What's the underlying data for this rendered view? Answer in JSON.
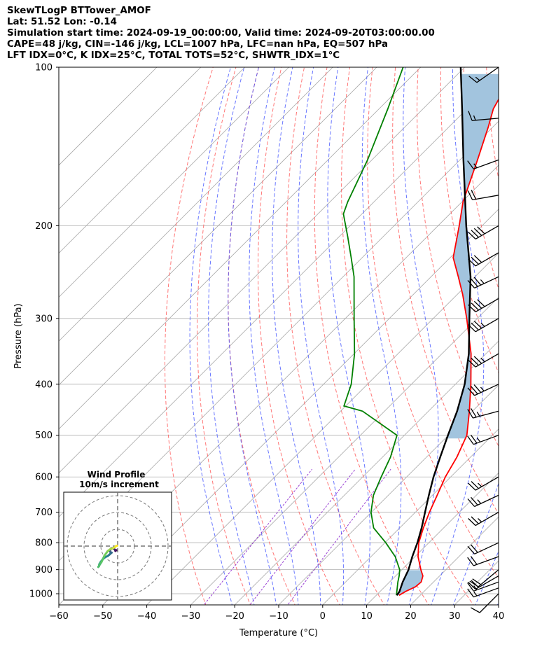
{
  "header": {
    "line1": "SkewTLogP BTTower_AMOF",
    "line2": "Lat: 51.52   Lon: -0.14",
    "line3": "Simulation start time: 2024-09-19_00:00:00, Valid time: 2024-09-20T03:00:00.00",
    "line4": "CAPE=48 j/kg, CIN=-146 j/kg, LCL=1007 hPa, LFC=nan hPa, EQ=507 hPa",
    "line5": "LFT IDX=0°C, K IDX=25°C, TOTAL TOTS=52°C, SHWTR_IDX=1°C"
  },
  "colors": {
    "temperature": "#ff0000",
    "dewpoint": "#008000",
    "parcel": "#000000",
    "cape_fill": "#a2c4de",
    "dry_adiabat": "#ff5555",
    "moist_adiabat": "#4455ff",
    "mixing_ratio": "#8822cc",
    "isotherm": "#a8a8a8"
  },
  "chart_data": {
    "type": "line",
    "xlabel": "Temperature (°C)",
    "ylabel": "Pressure (hPa)",
    "xlim": [
      -60,
      40
    ],
    "ylim": [
      1050,
      100
    ],
    "y_scale": "log",
    "grid": true,
    "x_ticks": [
      -60,
      -50,
      -40,
      -30,
      -20,
      -10,
      0,
      10,
      20,
      30,
      40
    ],
    "x_tick_labels": [
      "−60",
      "−50",
      "−40",
      "−30",
      "−20",
      "−10",
      "0",
      "10",
      "20",
      "30",
      "40"
    ],
    "y_ticks": [
      1000,
      900,
      800,
      700,
      600,
      500,
      400,
      300,
      200,
      100
    ],
    "y_tick_labels": [
      "1000",
      "900",
      "800",
      "700",
      "600",
      "500",
      "400",
      "300",
      "200",
      "100"
    ],
    "series": [
      {
        "id": "temperature",
        "pressure": [
          1007,
          990,
          970,
          950,
          925,
          900,
          850,
          800,
          750,
          700,
          650,
          600,
          550,
          500,
          450,
          400,
          350,
          300,
          270,
          250,
          230,
          200,
          180,
          150,
          130,
          120,
          110,
          100
        ],
        "values": [
          15.2,
          15.8,
          17.0,
          17.2,
          16.2,
          14.3,
          10.7,
          7.7,
          5.4,
          3.2,
          1.1,
          -1.2,
          -3.1,
          -5.8,
          -10.7,
          -16.5,
          -23.4,
          -32.4,
          -38.8,
          -43.8,
          -49.3,
          -55.2,
          -59.8,
          -66.0,
          -71.0,
          -74.0,
          -76.0,
          -78.0
        ]
      },
      {
        "id": "dewpoint",
        "pressure": [
          1007,
          950,
          925,
          900,
          850,
          800,
          750,
          700,
          650,
          600,
          550,
          500,
          450,
          440,
          400,
          350,
          300,
          250,
          230,
          210,
          190,
          180,
          150,
          120,
          100
        ],
        "values": [
          14.6,
          11.9,
          10.8,
          9.5,
          5.5,
          0.2,
          -5.9,
          -10.1,
          -13.4,
          -15.8,
          -18.2,
          -21.7,
          -35.0,
          -40.4,
          -43.7,
          -49.9,
          -58.0,
          -67.5,
          -72.5,
          -78.0,
          -84.2,
          -86.0,
          -91.0,
          -98.0,
          -104.0
        ]
      },
      {
        "id": "parcel",
        "pressure": [
          1007,
          990,
          950,
          900,
          850,
          800,
          750,
          700,
          650,
          600,
          550,
          500,
          450,
          400,
          350,
          300,
          250,
          200,
          150,
          120,
          100
        ],
        "values": [
          14.7,
          14.4,
          13.0,
          11.5,
          9.4,
          7.4,
          5.0,
          2.2,
          -0.8,
          -3.9,
          -6.9,
          -10.1,
          -13.5,
          -17.9,
          -23.9,
          -31.8,
          -41.0,
          -53.6,
          -69.2,
          -81.1,
          -90.9
        ]
      }
    ],
    "wind_barbs": {
      "pressure": [
        1000,
        975,
        950,
        925,
        900,
        850,
        800,
        700,
        650,
        600,
        500,
        450,
        400,
        350,
        300,
        275,
        250,
        225,
        200,
        175,
        150,
        125,
        100
      ],
      "speed_kt": [
        10,
        15,
        15,
        20,
        20,
        20,
        20,
        25,
        25,
        25,
        25,
        25,
        35,
        35,
        35,
        40,
        35,
        30,
        40,
        20,
        15,
        15,
        15
      ],
      "direction_deg": [
        225,
        250,
        250,
        240,
        230,
        250,
        245,
        240,
        245,
        240,
        250,
        255,
        245,
        240,
        240,
        240,
        245,
        240,
        240,
        260,
        250,
        265,
        235
      ]
    },
    "hodograph": {
      "title_line1": "Wind Profile",
      "title_line2": "10m/s increment",
      "ring_increment_ms": 10,
      "u": [
        -0.8,
        -1.3,
        -1.6,
        -2.5,
        -3.2,
        -4.1,
        -4.6,
        -4.2,
        -3.6,
        -4.8,
        -6.0,
        -7.4,
        -8.9,
        -10.1,
        -10.9,
        -11.1,
        -11.5,
        -9.6,
        -7.8,
        -5.9,
        -4.3,
        -2.7,
        -1.8,
        -1.0,
        -0.3
      ],
      "v": [
        -2.4,
        -2.9,
        -2.2,
        -1.4,
        -1.2,
        -1.6,
        -3.0,
        -3.8,
        -3.9,
        -5.0,
        -6.0,
        -6.6,
        -7.9,
        -9.4,
        -10.8,
        -11.9,
        -12.4,
        -9.4,
        -5.6,
        -3.0,
        -1.8,
        -1.2,
        -0.7,
        0.0,
        0.2
      ]
    }
  }
}
